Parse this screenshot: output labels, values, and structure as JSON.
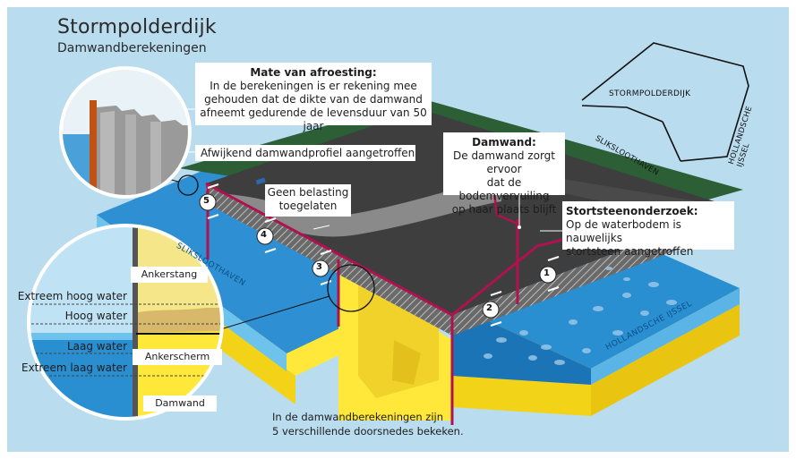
{
  "header": {
    "title": "Stormpolderdijk",
    "subtitle": "Damwandberekeningen"
  },
  "callouts": {
    "afroesting": {
      "title": "Mate van afroesting:",
      "text": "In de berekeningen is er rekening mee gehouden dat de dikte van de damwand afneemt gedurende de levensduur van 50 jaar"
    },
    "afwijkend": {
      "text": "Afwijkend damwandprofiel aangetroffen"
    },
    "geen_belasting": {
      "line1": "Geen belasting",
      "line2": "toegelaten"
    },
    "damwand": {
      "title": "Damwand:",
      "line1": "De damwand zorgt ervoor",
      "line2": "dat de bodemvervuiling",
      "line3": "op haar plaats blijft"
    },
    "stortsteen": {
      "title": "Stortsteenonderzoek:",
      "line1": "Op de waterbodem is nauwelijks",
      "line2": "stortsteen aangetroffen"
    }
  },
  "map": {
    "stormpolderdijk": "STORMPOLDERDIJK",
    "sliksloothaven": "SLIKSLOOTHAVEN",
    "hollandsche_ijssel": "HOLLANDSCHE IJSSEL"
  },
  "water_labels": {
    "sliksloothaven": "SLIKSLOOTHAVEN",
    "hollandsche_ijssel": "HOLLANDSCHE IJSSEL"
  },
  "detail": {
    "ankerstang": "Ankerstang",
    "ankerscherm": "Ankerscherm",
    "damwand": "Damwand",
    "levels": {
      "extreem_hoog": "Extreem hoog water",
      "hoog": "Hoog water",
      "laag": "Laag water",
      "extreem_laag": "Extreem laag water"
    }
  },
  "sections": [
    "1",
    "2",
    "3",
    "4",
    "5"
  ],
  "footer": {
    "line1": "In de damwandberekeningen zijn",
    "line2": "5 verschillende doorsnedes bekeken."
  },
  "colors": {
    "sky": "#b9dcef",
    "asphalt": "#3e3e3e",
    "grass": "#2c5f36",
    "wall": "#b0124f",
    "water": "#2a8fd1",
    "water_light": "#6dc0ea",
    "sand": "#f2e23c"
  }
}
